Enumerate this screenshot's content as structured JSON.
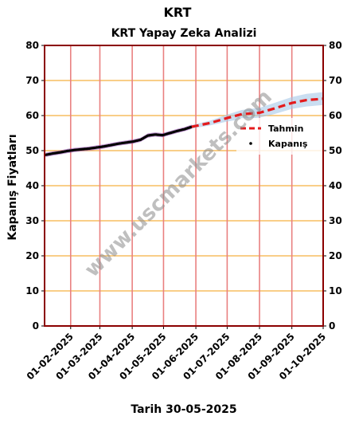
{
  "page_title": "KRT",
  "footer": "Tarih 30-05-2025",
  "watermark": "www.uscmarkets.com",
  "chart_data": {
    "type": "line",
    "title": "KRT Yapay Zeka Analizi",
    "xlabel": "",
    "ylabel": "Kapanış Fiyatları",
    "ylim": [
      0,
      80
    ],
    "yticks": [
      0,
      10,
      20,
      30,
      40,
      50,
      60,
      70,
      80
    ],
    "xlim": [
      "2025-01-07",
      "2025-10-01"
    ],
    "xticks": [
      "01-02-2025",
      "01-03-2025",
      "01-04-2025",
      "01-05-2025",
      "01-06-2025",
      "01-07-2025",
      "01-08-2025",
      "01-09-2025",
      "01-10-2025"
    ],
    "grid": true,
    "right_axis": true,
    "legend_position": "right",
    "colors": {
      "frame": "#8b0000",
      "vgrid": "#e98080",
      "hgrid": "#f5b041",
      "forecast": "#e41a1c",
      "band": "#a6c8e8",
      "history_band": "#8e44ad",
      "points": "#000000"
    },
    "series": [
      {
        "name": "Kapanış",
        "style": "points",
        "x": [
          "2025-01-08",
          "2025-01-15",
          "2025-01-22",
          "2025-01-29",
          "2025-02-05",
          "2025-02-12",
          "2025-02-19",
          "2025-02-26",
          "2025-03-05",
          "2025-03-12",
          "2025-03-19",
          "2025-03-26",
          "2025-04-02",
          "2025-04-09",
          "2025-04-16",
          "2025-04-23",
          "2025-04-30",
          "2025-05-07",
          "2025-05-14",
          "2025-05-21",
          "2025-05-28"
        ],
        "y": [
          48.8,
          49.2,
          49.5,
          49.9,
          50.2,
          50.4,
          50.6,
          50.9,
          51.2,
          51.6,
          52.0,
          52.3,
          52.6,
          53.1,
          54.3,
          54.6,
          54.4,
          55.0,
          55.6,
          56.1,
          56.8
        ]
      },
      {
        "name": "Tahmin",
        "style": "dashed",
        "x": [
          "2025-05-28",
          "2025-06-15",
          "2025-07-01",
          "2025-07-15",
          "2025-08-01",
          "2025-08-15",
          "2025-09-01",
          "2025-09-15",
          "2025-10-01"
        ],
        "y": [
          56.8,
          57.9,
          59.3,
          60.4,
          60.8,
          62.0,
          63.6,
          64.4,
          64.8
        ],
        "band_lower": [
          56.3,
          57.2,
          58.3,
          59.0,
          59.4,
          60.4,
          61.9,
          62.6,
          63.0
        ],
        "band_upper": [
          57.3,
          58.6,
          60.3,
          61.6,
          62.2,
          63.6,
          65.3,
          66.2,
          66.7
        ]
      }
    ]
  }
}
